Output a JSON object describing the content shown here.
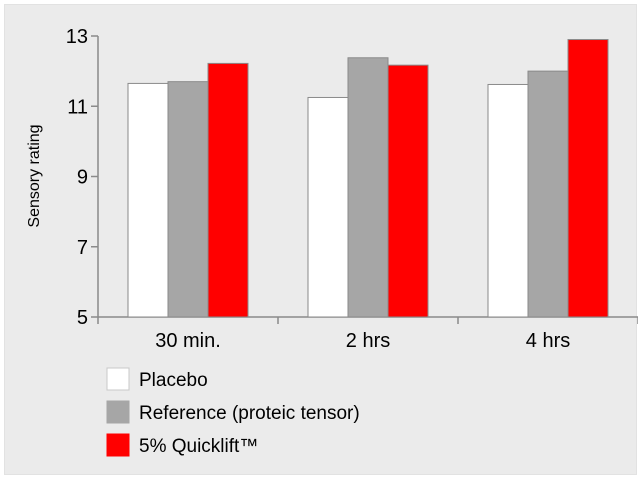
{
  "chart_data": {
    "type": "bar",
    "title": "",
    "xlabel": "",
    "ylabel": "Sensory rating",
    "categories": [
      "30 min.",
      "2 hrs",
      "4 hrs"
    ],
    "ylim": [
      5,
      13
    ],
    "yticks": [
      5,
      7,
      9,
      11,
      13
    ],
    "grid": false,
    "legend_position": "bottom-left",
    "series": [
      {
        "name": "Placebo",
        "color": "#ffffff",
        "values": [
          11.65,
          11.25,
          11.62
        ]
      },
      {
        "name": "Reference (proteic tensor)",
        "color": "#a6a6a6",
        "values": [
          11.7,
          12.38,
          12.0
        ]
      },
      {
        "name": "5% Quicklift™",
        "color": "#ff0000",
        "values": [
          12.22,
          12.17,
          12.9
        ]
      }
    ]
  }
}
